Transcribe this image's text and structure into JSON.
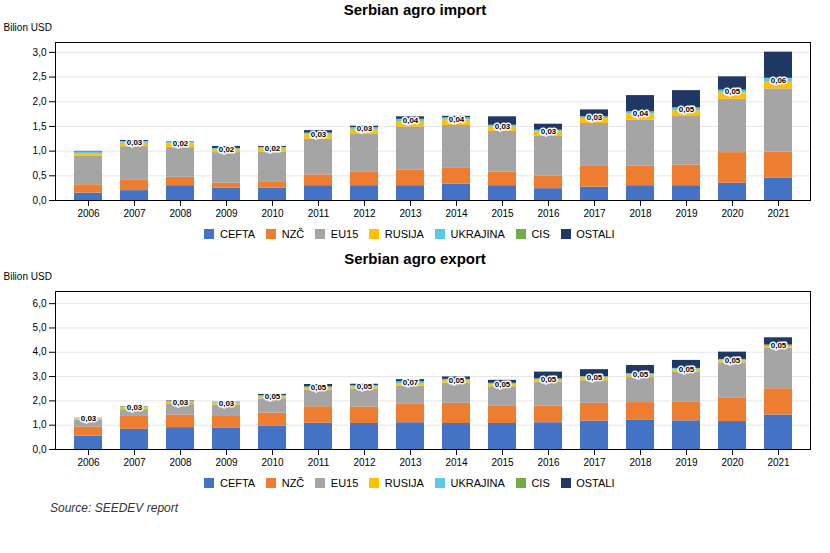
{
  "chart_data": [
    {
      "type": "bar",
      "stacked": true,
      "title": "Serbian agro import",
      "ylabel": "Bilion USD",
      "categories": [
        "2006",
        "2007",
        "2008",
        "2009",
        "2010",
        "2011",
        "2012",
        "2013",
        "2014",
        "2015",
        "2016",
        "2017",
        "2018",
        "2019",
        "2020",
        "2021"
      ],
      "series": [
        {
          "name": "CEFTA",
          "color": "#4472C4",
          "values": [
            0.15,
            0.2,
            0.3,
            0.25,
            0.25,
            0.3,
            0.3,
            0.3,
            0.33,
            0.3,
            0.24,
            0.27,
            0.3,
            0.3,
            0.35,
            0.45
          ]
        },
        {
          "name": "NZČ",
          "color": "#ED7D31",
          "values": [
            0.17,
            0.22,
            0.17,
            0.1,
            0.13,
            0.22,
            0.27,
            0.32,
            0.32,
            0.28,
            0.25,
            0.42,
            0.4,
            0.42,
            0.62,
            0.53
          ]
        },
        {
          "name": "EU15",
          "color": "#A5A5A5",
          "values": [
            0.58,
            0.67,
            0.6,
            0.62,
            0.6,
            0.72,
            0.77,
            0.87,
            0.87,
            0.82,
            0.82,
            0.87,
            0.93,
            0.98,
            1.08,
            1.28
          ]
        },
        {
          "name": "RUSIJA",
          "color": "#FFC000",
          "values": [
            0.05,
            0.07,
            0.08,
            0.06,
            0.07,
            0.09,
            0.1,
            0.11,
            0.11,
            0.09,
            0.08,
            0.1,
            0.12,
            0.12,
            0.13,
            0.15
          ]
        },
        {
          "name": "UKRAJINA",
          "color": "#5BC8E8",
          "values": [
            0.03,
            0.03,
            0.02,
            0.02,
            0.02,
            0.03,
            0.03,
            0.04,
            0.04,
            0.03,
            0.03,
            0.03,
            0.04,
            0.05,
            0.05,
            0.06
          ],
          "data_labels": true,
          "value_labels": [
            null,
            "0,03",
            "0,02",
            "0,02",
            "0,02",
            "0,03",
            "0,03",
            "0,04",
            "0,04",
            "0,03",
            "0,03",
            "0,03",
            "0,04",
            "0,05",
            "0,05",
            "0,06"
          ]
        },
        {
          "name": "CIS",
          "color": "#70AD47",
          "values": [
            0.005,
            0.005,
            0.005,
            0.005,
            0.005,
            0.005,
            0.005,
            0.005,
            0.005,
            0.005,
            0.005,
            0.005,
            0.005,
            0.005,
            0.005,
            0.005
          ]
        },
        {
          "name": "OSTALI",
          "color": "#1F3864",
          "values": [
            0.01,
            0.02,
            0.01,
            0.04,
            0.02,
            0.05,
            0.03,
            0.05,
            0.03,
            0.17,
            0.12,
            0.14,
            0.33,
            0.35,
            0.27,
            0.53
          ]
        }
      ],
      "ylim": [
        0,
        3.2
      ],
      "yticks": [
        {
          "value": 0.0,
          "label": "0,0"
        },
        {
          "value": 0.5,
          "label": "0,5"
        },
        {
          "value": 1.0,
          "label": "1,0"
        },
        {
          "value": 1.5,
          "label": "1,5"
        },
        {
          "value": 2.0,
          "label": "2,0"
        },
        {
          "value": 2.5,
          "label": "2,5"
        },
        {
          "value": 3.0,
          "label": "3,0"
        }
      ],
      "grid": true,
      "legend": "bottom"
    },
    {
      "type": "bar",
      "stacked": true,
      "title": "Serbian agro export",
      "ylabel": "Bilion USD",
      "categories": [
        "2006",
        "2007",
        "2008",
        "2009",
        "2010",
        "2011",
        "2012",
        "2013",
        "2014",
        "2015",
        "2016",
        "2017",
        "2018",
        "2019",
        "2020",
        "2021"
      ],
      "series": [
        {
          "name": "CEFTA",
          "color": "#4472C4",
          "values": [
            0.55,
            0.83,
            0.9,
            0.87,
            0.97,
            1.08,
            1.07,
            1.1,
            1.07,
            1.07,
            1.1,
            1.17,
            1.2,
            1.18,
            1.15,
            1.42
          ]
        },
        {
          "name": "NZČ",
          "color": "#ED7D31",
          "values": [
            0.38,
            0.53,
            0.52,
            0.52,
            0.53,
            0.68,
            0.68,
            0.78,
            0.83,
            0.73,
            0.68,
            0.73,
            0.73,
            0.78,
            0.98,
            1.08
          ]
        },
        {
          "name": "EU15",
          "color": "#A5A5A5",
          "values": [
            0.27,
            0.28,
            0.43,
            0.43,
            0.58,
            0.68,
            0.73,
            0.73,
            0.83,
            0.78,
            0.98,
            0.93,
            1.03,
            1.23,
            1.43,
            1.68
          ]
        },
        {
          "name": "RUSIJA",
          "color": "#FFC000",
          "values": [
            0.06,
            0.08,
            0.09,
            0.08,
            0.08,
            0.08,
            0.09,
            0.1,
            0.1,
            0.09,
            0.09,
            0.11,
            0.1,
            0.09,
            0.09,
            0.06
          ]
        },
        {
          "name": "UKRAJINA",
          "color": "#5BC8E8",
          "values": [
            0.03,
            0.03,
            0.03,
            0.03,
            0.05,
            0.05,
            0.05,
            0.07,
            0.05,
            0.05,
            0.05,
            0.05,
            0.05,
            0.05,
            0.05,
            0.05
          ],
          "data_labels": true,
          "value_labels": [
            "0,03",
            "0,03",
            "0,03",
            "0,03",
            "0,05",
            "0,05",
            "0,05",
            "0,07",
            "0,05",
            "0,05",
            "0,05",
            "0,05",
            "0,05",
            "0,05",
            "0,05",
            "0,05"
          ]
        },
        {
          "name": "CIS",
          "color": "#70AD47",
          "values": [
            0.005,
            0.005,
            0.005,
            0.005,
            0.005,
            0.005,
            0.005,
            0.005,
            0.005,
            0.005,
            0.005,
            0.005,
            0.005,
            0.005,
            0.005,
            0.005
          ]
        },
        {
          "name": "OSTALI",
          "color": "#1F3864",
          "values": [
            0.0,
            0.01,
            0.02,
            0.01,
            0.05,
            0.1,
            0.06,
            0.09,
            0.1,
            0.12,
            0.28,
            0.29,
            0.34,
            0.33,
            0.3,
            0.3
          ]
        }
      ],
      "ylim": [
        0,
        6.5
      ],
      "yticks": [
        {
          "value": 0.0,
          "label": "0,0"
        },
        {
          "value": 1.0,
          "label": "1,0"
        },
        {
          "value": 2.0,
          "label": "2,0"
        },
        {
          "value": 3.0,
          "label": "3,0"
        },
        {
          "value": 4.0,
          "label": "4,0"
        },
        {
          "value": 5.0,
          "label": "5,0"
        },
        {
          "value": 6.0,
          "label": "6,0"
        }
      ],
      "grid": true,
      "legend": "bottom",
      "caption": "Source: SEEDEV report"
    }
  ]
}
